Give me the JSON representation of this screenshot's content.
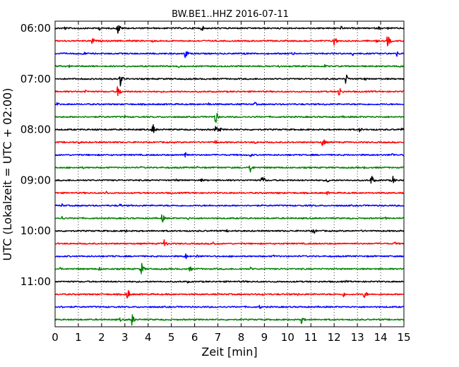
{
  "chart_data": {
    "type": "line",
    "title": "BW.BE1..HHZ 2016-07-11",
    "xlabel": "Zeit  [min]",
    "ylabel": "UTC (Lokalzeit = UTC + 02:00)",
    "xlim": [
      0,
      15
    ],
    "x_ticks": [
      "0",
      "1",
      "2",
      "3",
      "4",
      "5",
      "6",
      "7",
      "8",
      "9",
      "10",
      "11",
      "12",
      "13",
      "14",
      "15"
    ],
    "y_tick_labels": [
      "06:00",
      "07:00",
      "08:00",
      "09:00",
      "10:00",
      "11:00"
    ],
    "grid": "vertical dotted",
    "trace_interval_minutes": 15,
    "series": [
      {
        "start": "06:00",
        "color": "#000000",
        "events": [
          [
            0.4,
            0.3
          ],
          [
            1.0,
            0.2
          ],
          [
            1.9,
            0.3
          ],
          [
            2.7,
            0.9
          ],
          [
            6.3,
            0.5
          ],
          [
            12.3,
            0.3
          ],
          [
            13.9,
            0.3
          ],
          [
            14.3,
            0.2
          ]
        ]
      },
      {
        "start": "06:15",
        "color": "#ff0000",
        "events": [
          [
            1.6,
            0.6
          ],
          [
            2.0,
            0.2
          ],
          [
            3.2,
            0.2
          ],
          [
            4.2,
            0.2
          ],
          [
            12.0,
            0.9
          ],
          [
            13.8,
            0.3
          ],
          [
            14.3,
            1.0
          ]
        ]
      },
      {
        "start": "06:30",
        "color": "#0000ff",
        "events": [
          [
            1.2,
            0.4
          ],
          [
            5.6,
            0.8
          ],
          [
            8.2,
            0.3
          ],
          [
            10.2,
            0.4
          ],
          [
            12.8,
            0.3
          ],
          [
            14.7,
            0.4
          ]
        ]
      },
      {
        "start": "06:45",
        "color": "#008000",
        "events": [
          [
            0.1,
            0.3
          ],
          [
            0.6,
            0.2
          ],
          [
            3.0,
            0.3
          ],
          [
            5.3,
            0.3
          ],
          [
            9.6,
            0.3
          ],
          [
            11.6,
            0.3
          ],
          [
            14.8,
            0.2
          ]
        ]
      },
      {
        "start": "07:00",
        "color": "#000000",
        "events": [
          [
            2.8,
            1.0
          ],
          [
            12.5,
            0.8
          ],
          [
            13.3,
            0.3
          ]
        ]
      },
      {
        "start": "07:15",
        "color": "#ff0000",
        "events": [
          [
            1.3,
            0.3
          ],
          [
            2.7,
            1.0
          ],
          [
            5.4,
            0.2
          ],
          [
            12.2,
            0.9
          ],
          [
            13.1,
            0.2
          ]
        ]
      },
      {
        "start": "07:30",
        "color": "#0000ff",
        "events": [
          [
            0.1,
            0.3
          ],
          [
            6.6,
            0.3
          ],
          [
            8.6,
            0.3
          ],
          [
            11.6,
            0.2
          ]
        ]
      },
      {
        "start": "07:45",
        "color": "#008000",
        "events": [
          [
            6.9,
            1.0
          ],
          [
            3.0,
            0.2
          ],
          [
            8.6,
            0.2
          ],
          [
            12.4,
            0.2
          ]
        ]
      },
      {
        "start": "08:00",
        "color": "#000000",
        "events": [
          [
            1.8,
            0.2
          ],
          [
            4.2,
            0.9
          ],
          [
            6.9,
            0.7
          ],
          [
            7.1,
            0.3
          ],
          [
            13.1,
            0.4
          ],
          [
            14.9,
            0.3
          ]
        ]
      },
      {
        "start": "08:15",
        "color": "#ff0000",
        "events": [
          [
            1.0,
            0.3
          ],
          [
            6.9,
            0.4
          ],
          [
            8.6,
            0.3
          ],
          [
            11.5,
            0.9
          ]
        ]
      },
      {
        "start": "08:30",
        "color": "#0000ff",
        "events": [
          [
            5.6,
            0.7
          ],
          [
            8.4,
            0.3
          ],
          [
            14.5,
            0.3
          ]
        ]
      },
      {
        "start": "08:45",
        "color": "#008000",
        "events": [
          [
            1.2,
            0.2
          ],
          [
            3.7,
            0.2
          ],
          [
            6.1,
            0.2
          ],
          [
            8.4,
            0.8
          ],
          [
            13.3,
            0.2
          ]
        ]
      },
      {
        "start": "09:00",
        "color": "#000000",
        "events": [
          [
            5.2,
            0.3
          ],
          [
            6.3,
            0.3
          ],
          [
            8.9,
            0.9
          ],
          [
            11.7,
            0.4
          ],
          [
            13.6,
            0.8
          ],
          [
            14.5,
            0.8
          ]
        ]
      },
      {
        "start": "09:15",
        "color": "#ff0000",
        "events": [
          [
            2.2,
            0.3
          ],
          [
            5.0,
            0.2
          ],
          [
            9.6,
            0.2
          ],
          [
            11.7,
            0.3
          ]
        ]
      },
      {
        "start": "09:30",
        "color": "#0000ff",
        "events": [
          [
            0.3,
            0.3
          ],
          [
            1.1,
            0.2
          ],
          [
            2.8,
            0.3
          ],
          [
            6.6,
            0.2
          ],
          [
            11.0,
            0.2
          ]
        ]
      },
      {
        "start": "09:45",
        "color": "#008000",
        "events": [
          [
            0.3,
            0.3
          ],
          [
            4.6,
            0.7
          ],
          [
            5.7,
            0.3
          ],
          [
            14.2,
            0.2
          ]
        ]
      },
      {
        "start": "10:00",
        "color": "#000000",
        "events": [
          [
            3.0,
            0.3
          ],
          [
            7.4,
            0.2
          ],
          [
            11.1,
            0.6
          ],
          [
            13.2,
            0.2
          ]
        ]
      },
      {
        "start": "10:15",
        "color": "#ff0000",
        "events": [
          [
            4.7,
            0.7
          ],
          [
            6.8,
            0.4
          ],
          [
            14.6,
            0.3
          ]
        ]
      },
      {
        "start": "10:30",
        "color": "#0000ff",
        "events": [
          [
            2.4,
            0.2
          ],
          [
            5.6,
            0.5
          ],
          [
            6.1,
            0.3
          ],
          [
            9.4,
            0.2
          ]
        ]
      },
      {
        "start": "10:45",
        "color": "#008000",
        "events": [
          [
            0.2,
            0.3
          ],
          [
            1.9,
            0.3
          ],
          [
            3.7,
            1.0
          ],
          [
            5.8,
            0.4
          ],
          [
            8.4,
            0.3
          ]
        ]
      },
      {
        "start": "11:00",
        "color": "#000000",
        "events": [
          [
            5.7,
            0.2
          ],
          [
            8.1,
            0.2
          ],
          [
            12.5,
            0.2
          ]
        ]
      },
      {
        "start": "11:15",
        "color": "#ff0000",
        "events": [
          [
            3.1,
            0.9
          ],
          [
            8.9,
            0.3
          ],
          [
            10.4,
            0.3
          ],
          [
            12.4,
            0.4
          ],
          [
            13.3,
            0.7
          ]
        ]
      },
      {
        "start": "11:30",
        "color": "#0000ff",
        "events": [
          [
            0.3,
            0.2
          ],
          [
            8.8,
            0.3
          ]
        ]
      },
      {
        "start": "11:45",
        "color": "#008000",
        "events": [
          [
            3.3,
            0.9
          ],
          [
            10.6,
            0.6
          ],
          [
            2.8,
            0.3
          ]
        ]
      }
    ]
  }
}
